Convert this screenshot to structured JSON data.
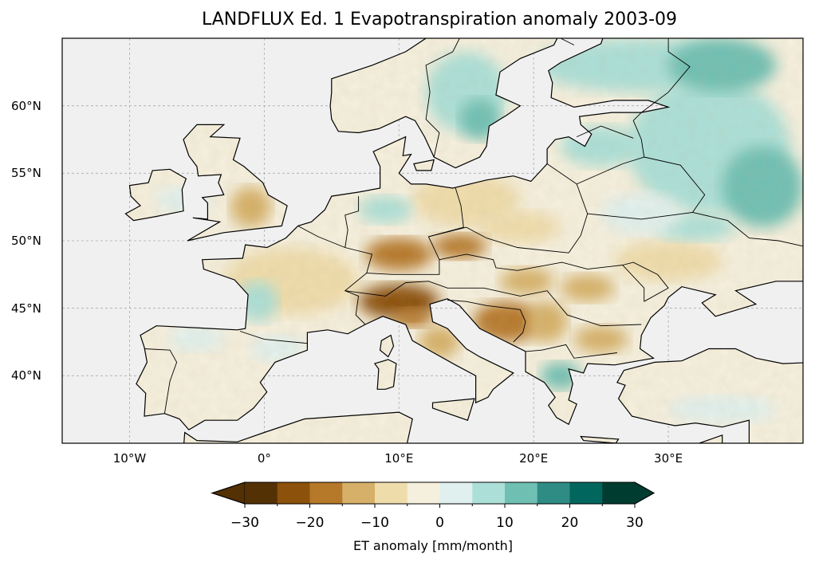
{
  "title": "LANDFLUX Ed. 1 Evapotranspiration anomaly 2003-09",
  "map": {
    "projection": "PlateCarree",
    "lon_range": [
      -15,
      40
    ],
    "lat_range": [
      35,
      65
    ],
    "x_ticks": [
      {
        "lon": -10,
        "label": "10°W"
      },
      {
        "lon": 0,
        "label": "0°"
      },
      {
        "lon": 10,
        "label": "10°E"
      },
      {
        "lon": 20,
        "label": "20°E"
      },
      {
        "lon": 30,
        "label": "30°E"
      }
    ],
    "y_ticks": [
      {
        "lat": 40,
        "label": "40°N"
      },
      {
        "lat": 45,
        "label": "45°N"
      },
      {
        "lat": 50,
        "label": "50°N"
      },
      {
        "lat": 55,
        "label": "55°N"
      },
      {
        "lat": 60,
        "label": "60°N"
      }
    ],
    "ocean_color": "#f0f0f0",
    "gridlines": true
  },
  "colorbar": {
    "label": "ET anomaly [mm/month]",
    "levels": [
      -30,
      -25,
      -20,
      -15,
      -10,
      -5,
      0,
      5,
      10,
      15,
      20,
      25,
      30
    ],
    "tick_labels": [
      "−30",
      "−20",
      "−10",
      "0",
      "10",
      "20",
      "30"
    ],
    "tick_values": [
      -30,
      -20,
      -10,
      0,
      10,
      20,
      30
    ],
    "colors": [
      "#543005",
      "#8c510a",
      "#b67829",
      "#d6b068",
      "#efdcab",
      "#f5efdd",
      "#e0f0ee",
      "#acdfd7",
      "#6fbfb3",
      "#2e8c85",
      "#01665e",
      "#003c30"
    ],
    "extend": "both"
  }
}
